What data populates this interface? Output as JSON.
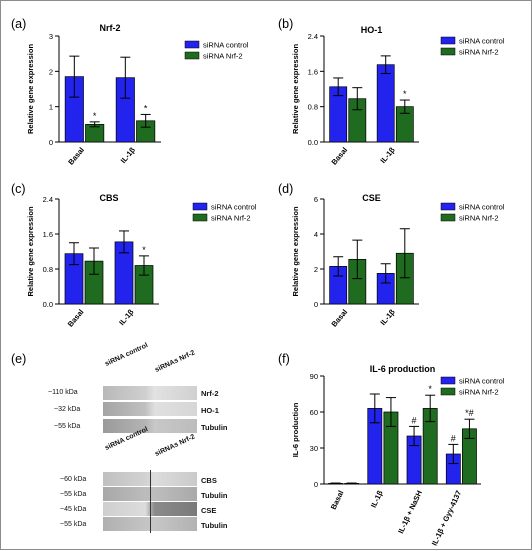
{
  "panel_letters": [
    "(a)",
    "(b)",
    "(c)",
    "(d)",
    "(e)",
    "(f)"
  ],
  "colors": {
    "control": "#2323ee",
    "nrf2": "#1f6b1f",
    "frame": "#8c8c8c"
  },
  "chart_data": [
    {
      "letter": "(a)",
      "type": "bar",
      "title": "Nrf-2",
      "ylabel": "Relative gene expression",
      "ylim": [
        0,
        3
      ],
      "yticks": [
        0,
        1,
        2,
        3
      ],
      "ytick_labels": [
        "0",
        "1",
        "2",
        "3"
      ],
      "categories": [
        "Basal",
        "IL-1β"
      ],
      "series": [
        {
          "name": "siRNA control",
          "values": [
            1.85,
            1.82
          ],
          "errors": [
            0.58,
            0.58
          ],
          "marks": [
            "",
            ""
          ]
        },
        {
          "name": "siRNA Nrf-2",
          "values": [
            0.5,
            0.6
          ],
          "errors": [
            0.07,
            0.18
          ],
          "marks": [
            "*",
            "*"
          ]
        }
      ],
      "legend": "top-right"
    },
    {
      "letter": "(b)",
      "type": "bar",
      "title": "HO-1",
      "ylabel": "Relative gene expression",
      "ylim": [
        0,
        2.4
      ],
      "yticks": [
        0,
        0.8,
        1.6,
        2.4
      ],
      "ytick_labels": [
        "0.0",
        "0.8",
        "1.6",
        "2.4"
      ],
      "categories": [
        "Basal",
        "IL-1β"
      ],
      "series": [
        {
          "name": "siRNA control",
          "values": [
            1.25,
            1.75
          ],
          "errors": [
            0.2,
            0.2
          ],
          "marks": [
            "",
            ""
          ]
        },
        {
          "name": "siRNA Nrf-2",
          "values": [
            0.98,
            0.8
          ],
          "errors": [
            0.25,
            0.15
          ],
          "marks": [
            "",
            "*"
          ]
        }
      ],
      "legend": "top-right"
    },
    {
      "letter": "(c)",
      "type": "bar",
      "title": "CBS",
      "ylabel": "Relative gene expression",
      "ylim": [
        0,
        2.4
      ],
      "yticks": [
        0,
        0.8,
        1.6,
        2.4
      ],
      "ytick_labels": [
        "0.0",
        "0.8",
        "1.6",
        "2.4"
      ],
      "categories": [
        "Basal",
        "IL-1β"
      ],
      "series": [
        {
          "name": "siRNA control",
          "values": [
            1.15,
            1.42
          ],
          "errors": [
            0.25,
            0.25
          ],
          "marks": [
            "",
            ""
          ]
        },
        {
          "name": "siRNA Nrf-2",
          "values": [
            0.98,
            0.88
          ],
          "errors": [
            0.3,
            0.22
          ],
          "marks": [
            "",
            "*"
          ]
        }
      ],
      "legend": "top-right"
    },
    {
      "letter": "(d)",
      "type": "bar",
      "title": "CSE",
      "ylabel": "Relative gene expression",
      "ylim": [
        0,
        6
      ],
      "yticks": [
        0,
        2,
        4,
        6
      ],
      "ytick_labels": [
        "0",
        "2",
        "4",
        "6"
      ],
      "categories": [
        "Basal",
        "IL-1β"
      ],
      "series": [
        {
          "name": "siRNA control",
          "values": [
            2.15,
            1.75
          ],
          "errors": [
            0.55,
            0.55
          ],
          "marks": [
            "",
            ""
          ]
        },
        {
          "name": "siRNA Nrf-2",
          "values": [
            2.55,
            2.9
          ],
          "errors": [
            1.1,
            1.4
          ],
          "marks": [
            "",
            ""
          ]
        }
      ],
      "legend": "top-right"
    },
    {
      "letter": "(f)",
      "type": "bar",
      "title": "IL-6 production",
      "ylabel": "IL-6 production",
      "ylim": [
        0,
        90
      ],
      "yticks": [
        0,
        30,
        60,
        90
      ],
      "ytick_labels": [
        "0",
        "30",
        "60",
        "90"
      ],
      "categories": [
        "Basal",
        "IL-1β",
        "IL-1β + NaSH",
        "IL-1β + Gyy-4137"
      ],
      "series": [
        {
          "name": "siRNA control",
          "values": [
            0.5,
            63,
            40,
            25
          ],
          "errors": [
            0.3,
            12,
            8,
            8
          ],
          "marks": [
            "",
            "",
            "#",
            "#"
          ]
        },
        {
          "name": "siRNA Nrf-2",
          "values": [
            0.5,
            60,
            63,
            46
          ],
          "errors": [
            0.3,
            12,
            11,
            8
          ],
          "marks": [
            "",
            "",
            "*",
            "*#"
          ]
        }
      ],
      "legend": "top-right"
    }
  ],
  "blot": {
    "top": {
      "columns": [
        "siRNA control",
        "siRNAs Nrf-2"
      ],
      "rows": [
        {
          "kda": "~110 kDa",
          "label": "Nrf-2"
        },
        {
          "kda": "~32 kDa",
          "label": "HO-1"
        },
        {
          "kda": "~55 kDa",
          "label": "Tubulin"
        }
      ]
    },
    "bottom": {
      "columns": [
        "siRNA control",
        "siRNAs Nrf-2"
      ],
      "rows": [
        {
          "kda": "~60 kDa",
          "label": "CBS"
        },
        {
          "kda": "~55 kDa",
          "label": "Tubulin"
        },
        {
          "kda": "~45 kDa",
          "label": "CSE"
        },
        {
          "kda": "~55 kDa",
          "label": "Tubulin"
        }
      ]
    }
  }
}
